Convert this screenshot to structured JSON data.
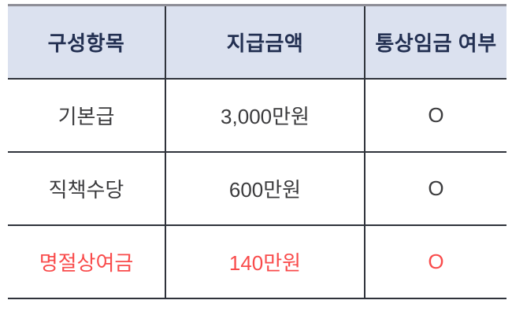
{
  "table": {
    "columns": [
      {
        "label": "구성항목"
      },
      {
        "label": "지급금액"
      },
      {
        "label": "통상임금 여부"
      }
    ],
    "rows": [
      {
        "item": "기본급",
        "amount": "3,000만원",
        "ordinary_wage": "O",
        "highlight": false
      },
      {
        "item": "직책수당",
        "amount": "600만원",
        "ordinary_wage": "O",
        "highlight": false
      },
      {
        "item": "명절상여금",
        "amount": "140만원",
        "ordinary_wage": "O",
        "highlight": true
      }
    ]
  },
  "colors": {
    "header_bg": "#dbe1ef",
    "header_text": "#233052",
    "body_text": "#3b3b3d",
    "highlight_text": "#f94b4b",
    "grid_line": "#2f333b",
    "top_rule": "#8e8e97",
    "page_bg": "#ffffff"
  }
}
